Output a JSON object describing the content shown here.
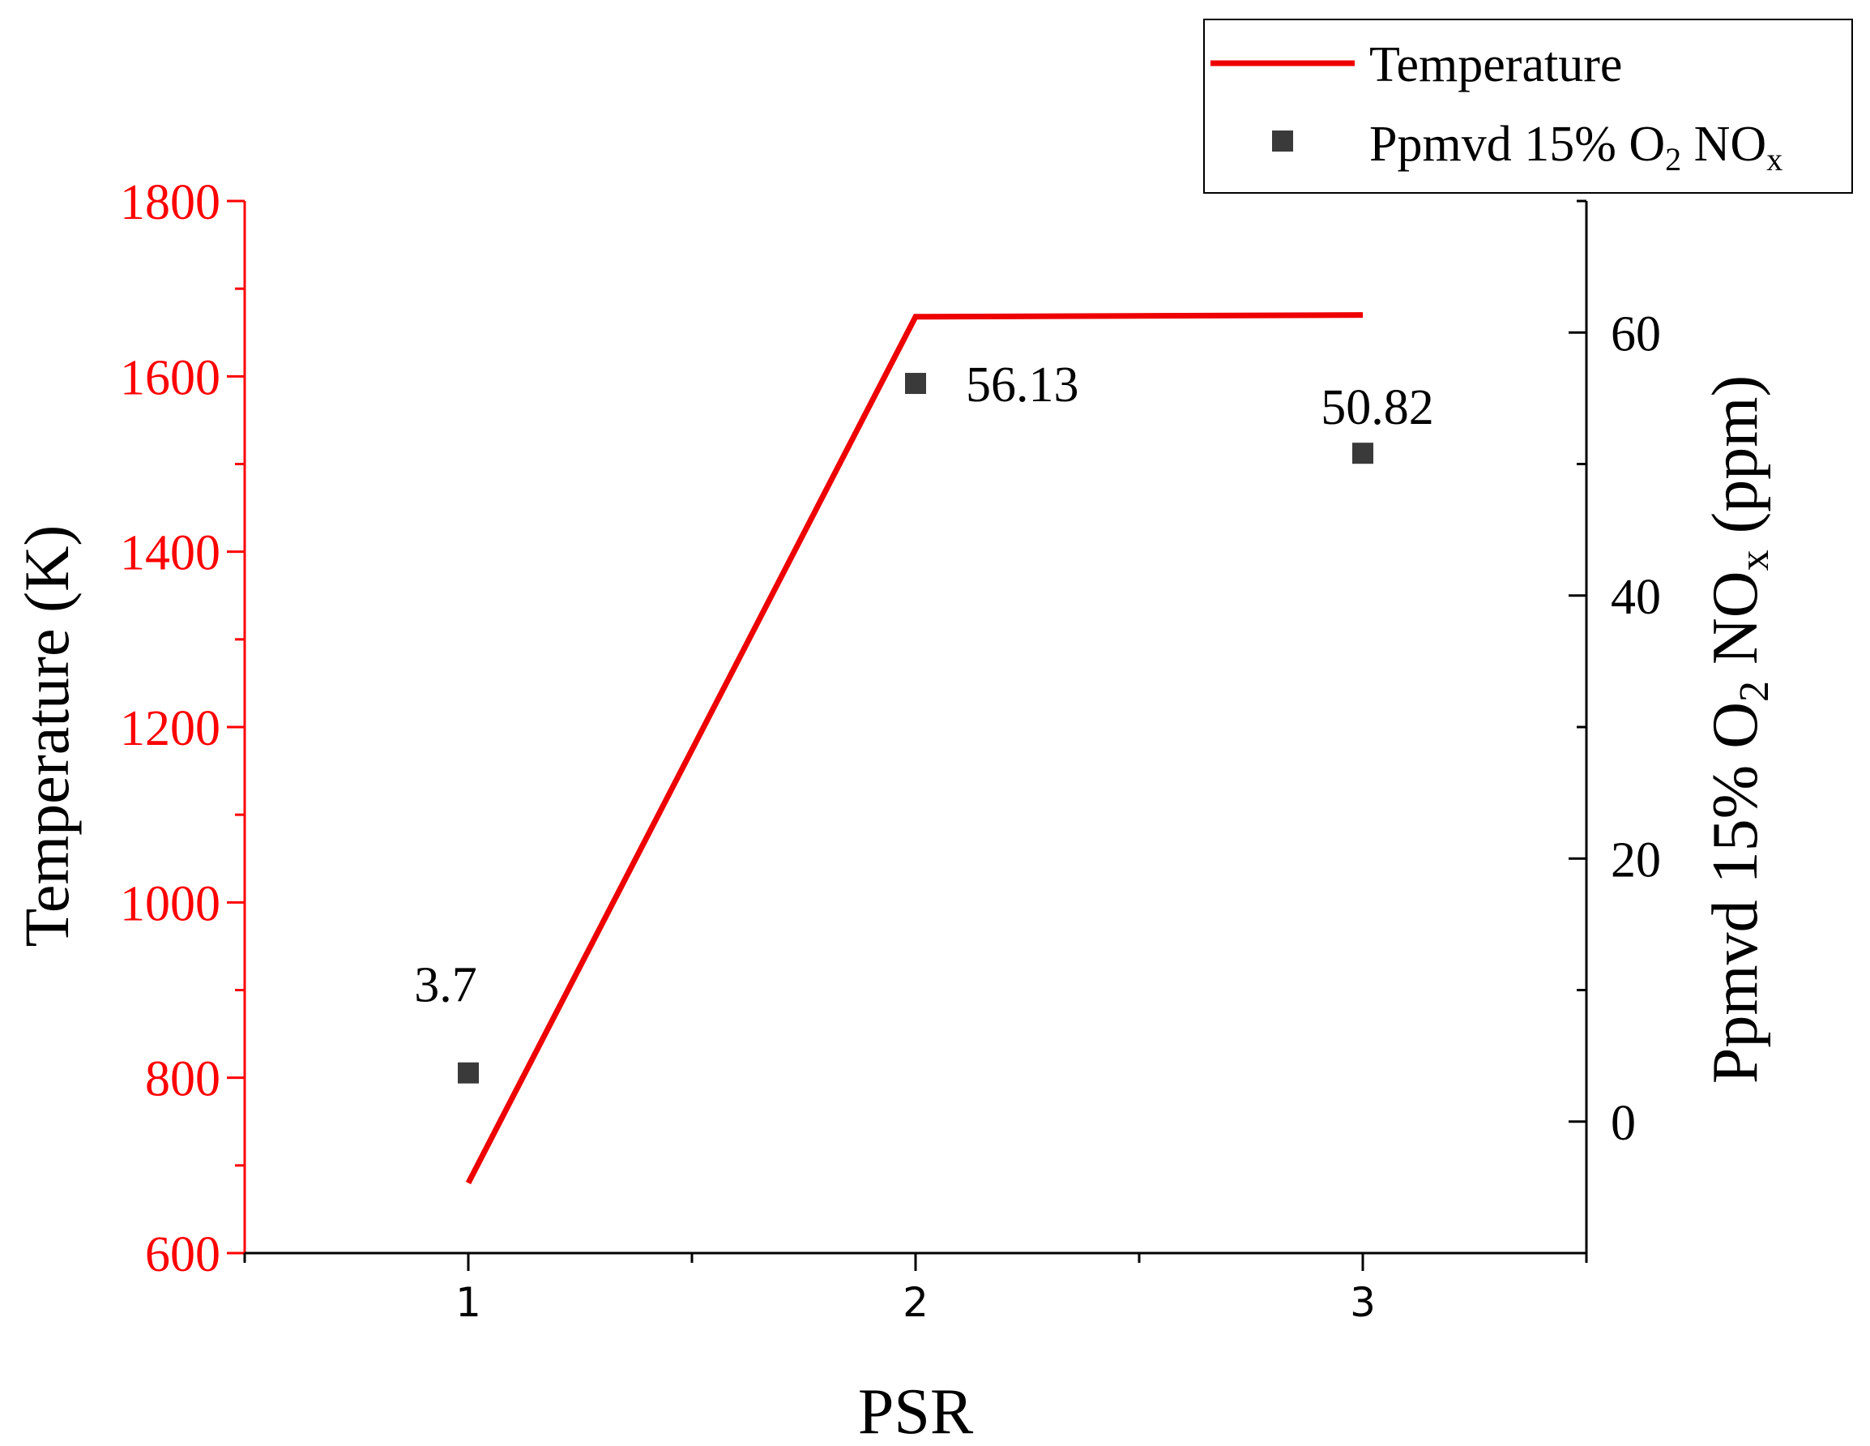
{
  "chart_data": {
    "type": "line+scatter",
    "title": "",
    "xlabel": "PSR",
    "ylabel_left": "Temperature (K)",
    "ylabel_right": {
      "main": "Ppmvd 15% O",
      "sub1": "2",
      "mid": " NO",
      "sub2": "x",
      "tail": " (ppm)"
    },
    "x_ticks": [
      "1",
      "2",
      "3"
    ],
    "x_tick_values": [
      1,
      2,
      3
    ],
    "xlim": [
      0.5,
      3.5
    ],
    "left_axis": {
      "ylim": [
        600,
        1800
      ],
      "ticks": [
        "600",
        "800",
        "1000",
        "1200",
        "1400",
        "1600",
        "1800"
      ],
      "tick_values": [
        600,
        800,
        1000,
        1200,
        1400,
        1600,
        1800
      ],
      "color": "#ff0000"
    },
    "right_axis": {
      "ylim": [
        -10,
        70
      ],
      "ticks": [
        "0",
        "20",
        "40",
        "60"
      ],
      "tick_values": [
        0,
        20,
        40,
        60
      ],
      "color": "#000000"
    },
    "series": [
      {
        "name": "Temperature",
        "kind": "line",
        "axis": "left",
        "color": "#ee0000",
        "x": [
          1,
          2,
          3
        ],
        "values": [
          680,
          1668,
          1670
        ]
      },
      {
        "name": "Ppmvd 15% O2 NOx",
        "kind": "scatter",
        "axis": "right",
        "color": "#3a3a3a",
        "x": [
          1,
          2,
          3
        ],
        "values": [
          3.7,
          56.13,
          50.82
        ],
        "labels": [
          "3.7",
          "56.13",
          "50.82"
        ]
      }
    ],
    "legend": {
      "position": "top-right",
      "temperature_label": "Temperature",
      "nox_label": {
        "main": "Ppmvd 15% O",
        "sub1": "2",
        "mid": " NO",
        "sub2": "x"
      }
    }
  }
}
